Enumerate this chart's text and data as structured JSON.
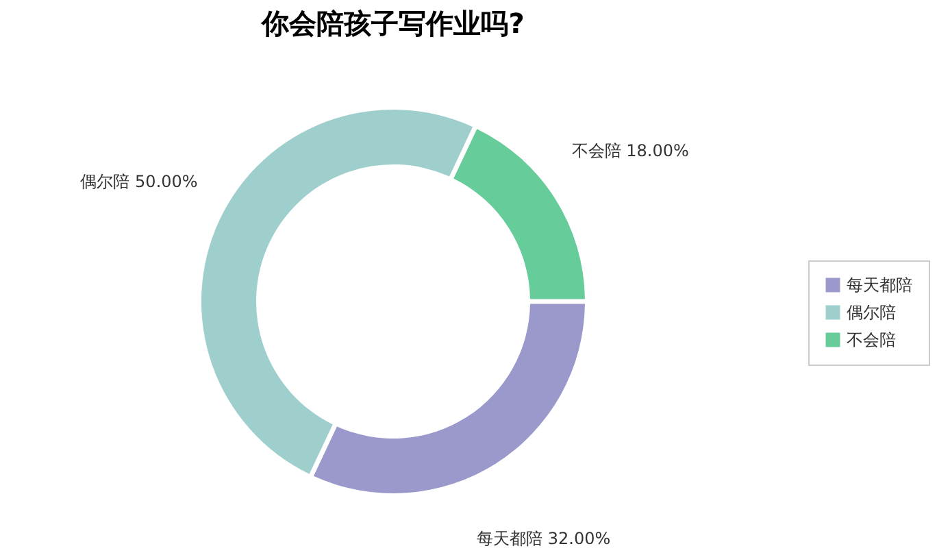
{
  "chart_data": {
    "type": "donut",
    "title": "你会陪孩子写作业吗?",
    "categories": [
      "每天都陪",
      "偶尔陪",
      "不会陪"
    ],
    "values": [
      32,
      50,
      18
    ],
    "value_labels": [
      "32.00%",
      "50.00%",
      "18.00%"
    ],
    "colors": [
      "#9b99cc",
      "#9fcfcc",
      "#66cc99"
    ],
    "legend": "right"
  }
}
